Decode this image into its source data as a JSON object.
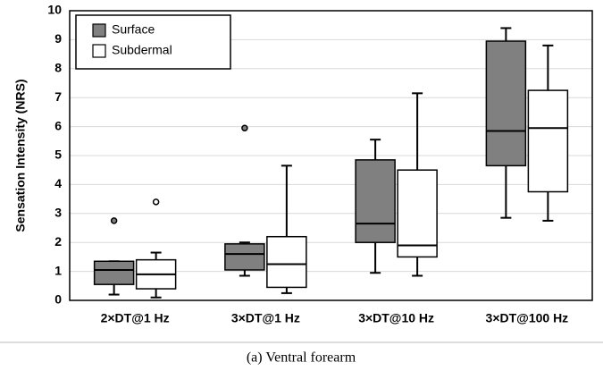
{
  "chart_data": {
    "type": "box",
    "ylabel": "Sensation Intensity (NRS)",
    "caption": "(a) Ventral forearm",
    "categories": [
      "2×DT@1 Hz",
      "3×DT@1 Hz",
      "3×DT@10 Hz",
      "3×DT@100 Hz"
    ],
    "series": [
      {
        "name": "Surface",
        "color": "#808080",
        "min": [
          0.2,
          0.85,
          0.95,
          2.85
        ],
        "q1": [
          0.55,
          1.05,
          2.0,
          4.65
        ],
        "median": [
          1.05,
          1.6,
          2.65,
          5.85
        ],
        "q3": [
          1.35,
          1.95,
          4.85,
          8.95
        ],
        "max": [
          1.35,
          2.0,
          5.55,
          9.4
        ],
        "outliers": [
          [
            2.75
          ],
          [
            5.95
          ],
          [],
          []
        ]
      },
      {
        "name": "Subdermal",
        "color": "#ffffff",
        "min": [
          0.1,
          0.25,
          0.85,
          2.75
        ],
        "q1": [
          0.4,
          0.45,
          1.5,
          3.75
        ],
        "median": [
          0.9,
          1.25,
          1.9,
          5.95
        ],
        "q3": [
          1.4,
          2.2,
          4.5,
          7.25
        ],
        "max": [
          1.65,
          4.65,
          7.15,
          8.8
        ],
        "outliers": [
          [
            3.4
          ],
          [],
          [],
          []
        ]
      }
    ],
    "ylim": [
      0,
      10
    ],
    "yticks": [
      0,
      1,
      2,
      3,
      4,
      5,
      6,
      7,
      8,
      9,
      10
    ],
    "grid": true,
    "legend": "upper left"
  }
}
